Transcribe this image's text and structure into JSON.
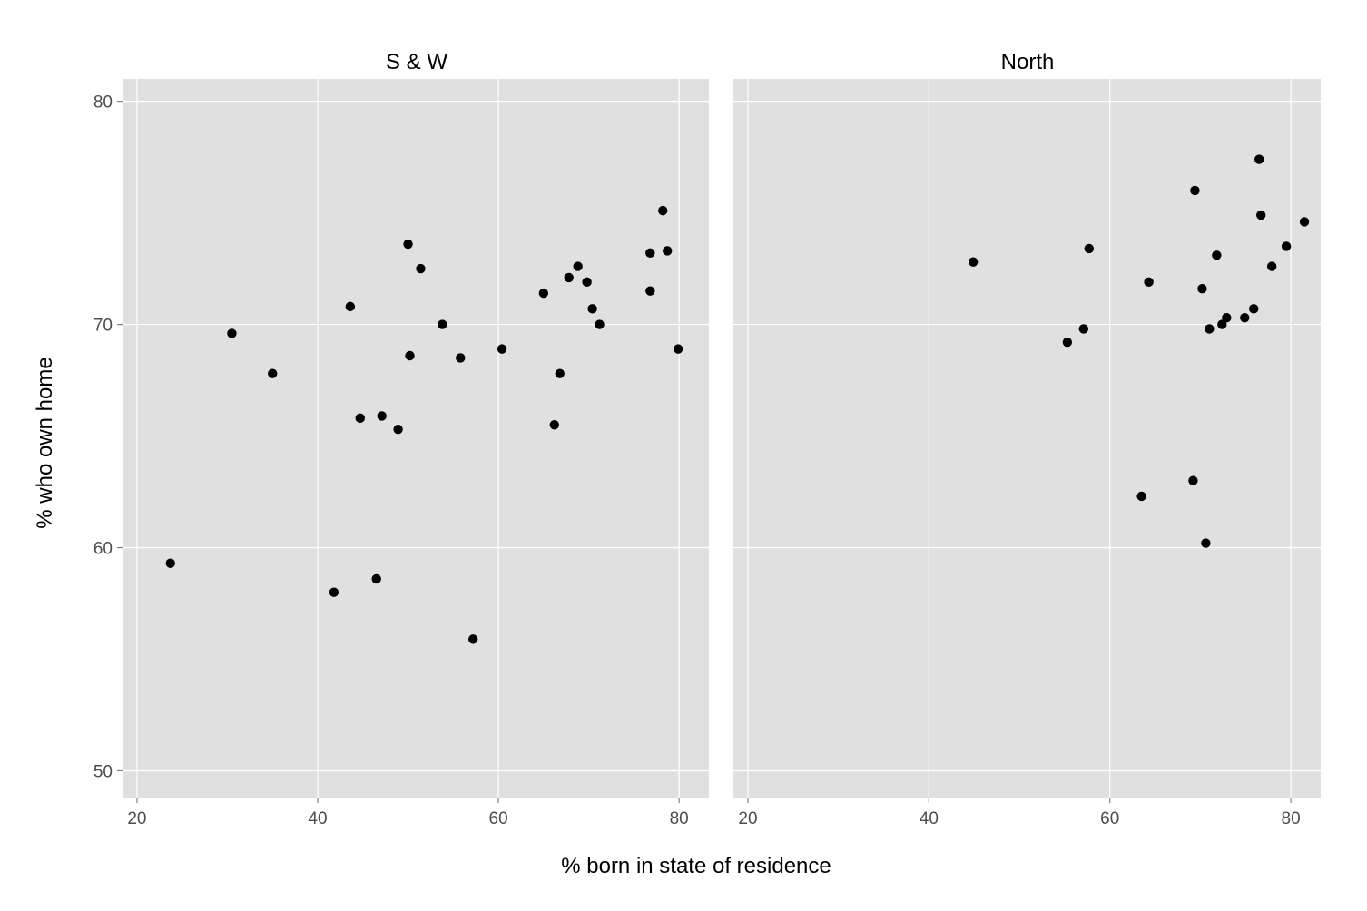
{
  "chart_data": {
    "type": "scatter",
    "xlabel": "% born in state of residence",
    "ylabel": "% who own home",
    "xlim": [
      18.4,
      83.3
    ],
    "ylim": [
      48.8,
      81.0
    ],
    "x_ticks": [
      20,
      40,
      60,
      80
    ],
    "y_ticks": [
      50,
      60,
      70,
      80
    ],
    "grid": true,
    "colors": {
      "panel_bg": "#e0e0e0",
      "grid": "#ffffff",
      "point": "#000000",
      "tick": "#7f7f7f",
      "tick_label": "#4d4d4d"
    },
    "panels": [
      {
        "title": "S & W",
        "points": [
          {
            "x": 23.7,
            "y": 59.3
          },
          {
            "x": 30.5,
            "y": 69.6
          },
          {
            "x": 35.0,
            "y": 67.8
          },
          {
            "x": 41.8,
            "y": 58.0
          },
          {
            "x": 43.6,
            "y": 70.8
          },
          {
            "x": 44.7,
            "y": 65.8
          },
          {
            "x": 46.5,
            "y": 58.6
          },
          {
            "x": 47.1,
            "y": 65.9
          },
          {
            "x": 48.9,
            "y": 65.3
          },
          {
            "x": 50.0,
            "y": 73.6
          },
          {
            "x": 50.2,
            "y": 68.6
          },
          {
            "x": 51.4,
            "y": 72.5
          },
          {
            "x": 53.8,
            "y": 70.0
          },
          {
            "x": 55.8,
            "y": 68.5
          },
          {
            "x": 57.2,
            "y": 55.9
          },
          {
            "x": 60.4,
            "y": 68.9
          },
          {
            "x": 65.0,
            "y": 71.4
          },
          {
            "x": 66.2,
            "y": 65.5
          },
          {
            "x": 66.8,
            "y": 67.8
          },
          {
            "x": 67.8,
            "y": 72.1
          },
          {
            "x": 68.8,
            "y": 72.6
          },
          {
            "x": 69.8,
            "y": 71.9
          },
          {
            "x": 70.4,
            "y": 70.7
          },
          {
            "x": 71.2,
            "y": 70.0
          },
          {
            "x": 76.8,
            "y": 73.2
          },
          {
            "x": 76.8,
            "y": 71.5
          },
          {
            "x": 78.2,
            "y": 75.1
          },
          {
            "x": 78.7,
            "y": 73.3
          },
          {
            "x": 79.9,
            "y": 68.9
          }
        ]
      },
      {
        "title": "North",
        "points": [
          {
            "x": 44.9,
            "y": 72.8
          },
          {
            "x": 55.3,
            "y": 69.2
          },
          {
            "x": 57.1,
            "y": 69.8
          },
          {
            "x": 57.7,
            "y": 73.4
          },
          {
            "x": 63.5,
            "y": 62.3
          },
          {
            "x": 64.3,
            "y": 71.9
          },
          {
            "x": 69.2,
            "y": 63.0
          },
          {
            "x": 69.4,
            "y": 76.0
          },
          {
            "x": 70.2,
            "y": 71.6
          },
          {
            "x": 70.6,
            "y": 60.2
          },
          {
            "x": 71.0,
            "y": 69.8
          },
          {
            "x": 71.8,
            "y": 73.1
          },
          {
            "x": 72.4,
            "y": 70.0
          },
          {
            "x": 72.9,
            "y": 70.3
          },
          {
            "x": 74.9,
            "y": 70.3
          },
          {
            "x": 75.9,
            "y": 70.7
          },
          {
            "x": 76.5,
            "y": 77.4
          },
          {
            "x": 76.7,
            "y": 74.9
          },
          {
            "x": 77.9,
            "y": 72.6
          },
          {
            "x": 79.5,
            "y": 73.5
          },
          {
            "x": 81.5,
            "y": 74.6
          }
        ]
      }
    ]
  }
}
